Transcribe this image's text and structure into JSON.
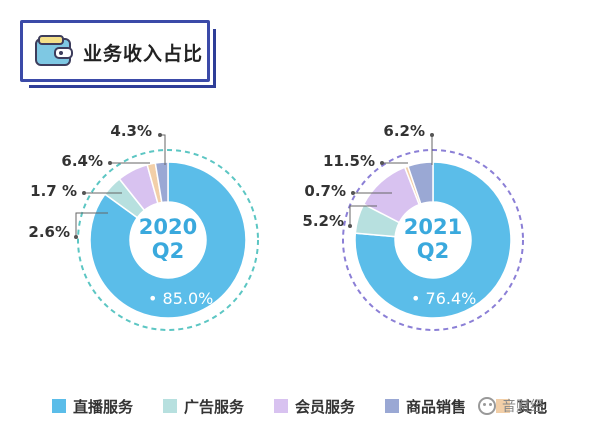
{
  "header": {
    "title": "业务收入占比",
    "icon": "wallet-icon"
  },
  "colors": {
    "直播服务": "#5bbde9",
    "广告服务": "#b7e0df",
    "会员服务": "#d8c2f0",
    "商品销售": "#9aa8d4",
    "其他": "#f2cfa8"
  },
  "chart_data": [
    {
      "type": "pie",
      "center_label": [
        "2020",
        "Q2"
      ],
      "categories": [
        "直播服务",
        "广告服务",
        "会员服务",
        "其他",
        "商品销售"
      ],
      "values": [
        85.0,
        4.3,
        6.4,
        1.7,
        2.6
      ],
      "labels": [
        "• 85.0%",
        "4.3%",
        "6.4%",
        "1.7 %",
        "2.6%"
      ],
      "ring_color": "#5cc6c3"
    },
    {
      "type": "pie",
      "center_label": [
        "2021",
        "Q2"
      ],
      "categories": [
        "直播服务",
        "广告服务",
        "会员服务",
        "其他",
        "商品销售"
      ],
      "values": [
        76.4,
        6.2,
        11.5,
        0.7,
        5.2
      ],
      "labels": [
        "• 76.4%",
        "6.2%",
        "11.5%",
        "0.7%",
        "5.2%"
      ],
      "ring_color": "#8b7fd6"
    }
  ],
  "legend": {
    "items": [
      {
        "label": "直播服务",
        "color": "#5bbde9"
      },
      {
        "label": "广告服务",
        "color": "#b7e0df"
      },
      {
        "label": "会员服务",
        "color": "#d8c2f0"
      },
      {
        "label": "商品销售",
        "color": "#9aa8d4"
      },
      {
        "label": "其他",
        "color": "#f2cfa8"
      }
    ]
  },
  "watermark": {
    "text": "音财经",
    "icon": "wechat-icon"
  }
}
